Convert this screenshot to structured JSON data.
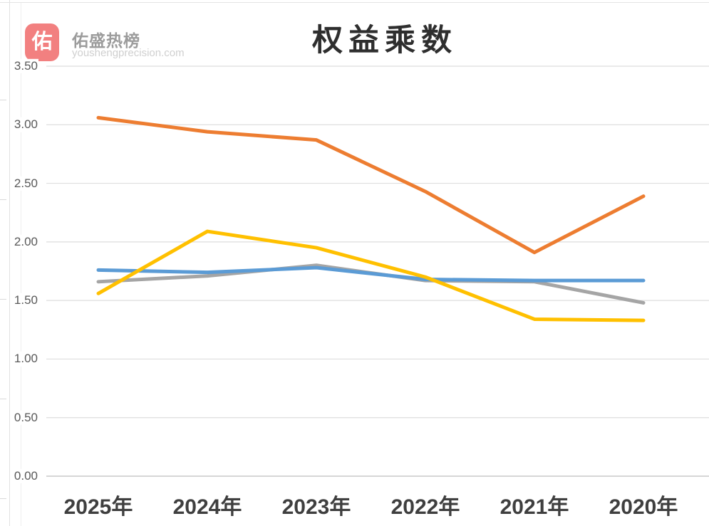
{
  "brand": {
    "logo_glyph": "佑",
    "logo_color": "#F28080",
    "name": "佑盛热榜",
    "domain": "youshengprecision.com"
  },
  "chart_data": {
    "type": "line",
    "title": "权益乘数",
    "categories": [
      "2025年",
      "2024年",
      "2023年",
      "2022年",
      "2021年",
      "2020年"
    ],
    "series": [
      {
        "name": "orange",
        "color": "#ED7D31",
        "values": [
          3.06,
          2.94,
          2.87,
          2.43,
          1.91,
          2.39
        ]
      },
      {
        "name": "gray",
        "color": "#A5A5A5",
        "values": [
          1.66,
          1.71,
          1.8,
          1.67,
          1.66,
          1.48
        ]
      },
      {
        "name": "blue",
        "color": "#5B9BD5",
        "values": [
          1.76,
          1.74,
          1.78,
          1.68,
          1.67,
          1.67
        ]
      },
      {
        "name": "yellow",
        "color": "#FFC000",
        "values": [
          1.56,
          2.09,
          1.95,
          1.7,
          1.34,
          1.33
        ]
      }
    ],
    "y_ticks": [
      "3.50",
      "3.00",
      "2.50",
      "2.00",
      "1.50",
      "1.00",
      "0.50",
      "0.00"
    ],
    "ylim": [
      0,
      3.5
    ],
    "grid": true,
    "legend": "none",
    "grid_color": "#DEDEDE",
    "baseline_color": "#C9C9C9",
    "tick_label_color": "#595959",
    "category_label_color": "#3F3F3F"
  }
}
